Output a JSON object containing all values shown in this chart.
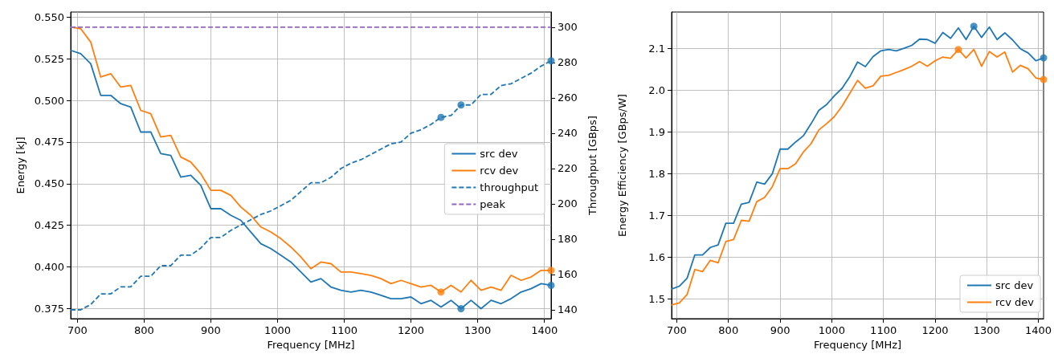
{
  "chart_data": [
    {
      "type": "line",
      "xlabel": "Frequency [MHz]",
      "ylabel": "Energy [kJ]",
      "y2label": "Throughput [GBps]",
      "x": [
        690,
        705,
        720,
        735,
        750,
        765,
        780,
        795,
        810,
        825,
        840,
        855,
        870,
        885,
        900,
        915,
        930,
        945,
        960,
        975,
        990,
        1005,
        1020,
        1035,
        1050,
        1065,
        1080,
        1095,
        1110,
        1125,
        1140,
        1155,
        1170,
        1185,
        1200,
        1215,
        1230,
        1245,
        1260,
        1275,
        1290,
        1305,
        1320,
        1335,
        1350,
        1365,
        1380,
        1395,
        1410
      ],
      "series": [
        {
          "name": "src dev",
          "color": "#1f77b4",
          "line_style": "solid",
          "values": [
            0.53,
            0.528,
            0.522,
            0.503,
            0.503,
            0.498,
            0.496,
            0.481,
            0.481,
            0.468,
            0.467,
            0.454,
            0.455,
            0.449,
            0.435,
            0.435,
            0.431,
            0.428,
            0.421,
            0.414,
            0.411,
            0.407,
            0.403,
            0.397,
            0.391,
            0.393,
            0.388,
            0.386,
            0.385,
            0.386,
            0.385,
            0.383,
            0.381,
            0.381,
            0.382,
            0.378,
            0.38,
            0.376,
            0.38,
            0.375,
            0.38,
            0.375,
            0.38,
            0.378,
            0.381,
            0.385,
            0.387,
            0.39,
            0.389
          ]
        },
        {
          "name": "rcv dev",
          "color": "#ff7f0e",
          "line_style": "solid",
          "values": [
            0.544,
            0.543,
            0.535,
            0.514,
            0.516,
            0.508,
            0.509,
            0.494,
            0.492,
            0.478,
            0.479,
            0.466,
            0.463,
            0.456,
            0.446,
            0.446,
            0.443,
            0.436,
            0.431,
            0.424,
            0.421,
            0.417,
            0.412,
            0.406,
            0.399,
            0.403,
            0.402,
            0.397,
            0.397,
            0.396,
            0.395,
            0.393,
            0.39,
            0.392,
            0.39,
            0.388,
            0.389,
            0.385,
            0.389,
            0.385,
            0.392,
            0.386,
            0.388,
            0.386,
            0.395,
            0.392,
            0.394,
            0.398,
            0.398
          ]
        },
        {
          "name": "throughput",
          "color": "#1f77b4",
          "line_style": "dashed",
          "axis": "y2",
          "values": [
            140,
            140,
            143,
            149,
            149,
            153,
            153,
            159,
            159,
            165,
            165,
            171,
            171,
            175,
            181,
            181,
            185,
            188,
            191,
            194,
            196,
            199,
            202,
            207,
            212,
            212,
            215,
            220,
            223,
            225,
            228,
            231,
            234,
            235,
            240,
            242,
            245,
            249,
            250,
            256,
            256,
            262,
            262,
            267,
            268,
            271,
            274,
            278,
            281
          ]
        },
        {
          "name": "peak",
          "color": "#9467bd",
          "line_style": "dashed",
          "axis": "y2",
          "x": [
            690,
            1410
          ],
          "values": [
            300,
            300
          ]
        },
        {
          "type": "scatter",
          "color": "#1f77b4",
          "marker": "circle",
          "x": [
            1275,
            1410
          ],
          "values": [
            0.375,
            0.389
          ]
        },
        {
          "type": "scatter",
          "color": "#ff7f0e",
          "marker": "circle",
          "x": [
            1245,
            1410
          ],
          "values": [
            0.385,
            0.398
          ]
        },
        {
          "type": "scatter",
          "color": "#1f77b4",
          "marker": "circle",
          "axis": "y2",
          "x": [
            1245,
            1275,
            1410
          ],
          "values": [
            249,
            256,
            281
          ]
        }
      ],
      "xlim": [
        690,
        1410
      ],
      "xticks": [
        700,
        800,
        900,
        1000,
        1100,
        1200,
        1300,
        1400
      ],
      "ylim": [
        0.369,
        0.553
      ],
      "yticks": [
        {
          "value": 0.375,
          "label": "0.375"
        },
        {
          "value": 0.4,
          "label": "0.400"
        },
        {
          "value": 0.425,
          "label": "0.425"
        },
        {
          "value": 0.45,
          "label": "0.450"
        },
        {
          "value": 0.475,
          "label": "0.475"
        },
        {
          "value": 0.5,
          "label": "0.500"
        },
        {
          "value": 0.525,
          "label": "0.525"
        },
        {
          "value": 0.55,
          "label": "0.550"
        }
      ],
      "y2lim": [
        135,
        308.6
      ],
      "y2ticks": [
        140,
        160,
        180,
        200,
        220,
        240,
        260,
        280,
        300
      ],
      "grid": true,
      "legend": "right",
      "marker": "none"
    },
    {
      "type": "line",
      "xlabel": "Frequency [MHz]",
      "ylabel": "Energy Efficiency [GBps/W]",
      "x": [
        690,
        705,
        720,
        735,
        750,
        765,
        780,
        795,
        810,
        825,
        840,
        855,
        870,
        885,
        900,
        915,
        930,
        945,
        960,
        975,
        990,
        1005,
        1020,
        1035,
        1050,
        1065,
        1080,
        1095,
        1110,
        1125,
        1140,
        1155,
        1170,
        1185,
        1200,
        1215,
        1230,
        1245,
        1260,
        1275,
        1290,
        1305,
        1320,
        1335,
        1350,
        1365,
        1380,
        1395,
        1410
      ],
      "series": [
        {
          "name": "src dev",
          "color": "#1f77b4",
          "values": [
            1.523,
            1.53,
            1.549,
            1.605,
            1.605,
            1.623,
            1.629,
            1.681,
            1.681,
            1.727,
            1.731,
            1.78,
            1.775,
            1.8,
            1.859,
            1.859,
            1.876,
            1.891,
            1.92,
            1.952,
            1.966,
            1.987,
            2.005,
            2.033,
            2.068,
            2.057,
            2.081,
            2.095,
            2.098,
            2.095,
            2.101,
            2.108,
            2.123,
            2.122,
            2.113,
            2.139,
            2.125,
            2.15,
            2.122,
            2.154,
            2.127,
            2.152,
            2.122,
            2.138,
            2.121,
            2.1,
            2.09,
            2.071,
            2.078
          ]
        },
        {
          "name": "rcv dev",
          "color": "#ff7f0e",
          "values": [
            1.485,
            1.49,
            1.51,
            1.57,
            1.565,
            1.592,
            1.586,
            1.637,
            1.642,
            1.688,
            1.686,
            1.733,
            1.743,
            1.769,
            1.812,
            1.812,
            1.824,
            1.852,
            1.872,
            1.905,
            1.92,
            1.937,
            1.962,
            1.993,
            2.024,
            2.005,
            2.011,
            2.034,
            2.036,
            2.043,
            2.05,
            2.058,
            2.069,
            2.058,
            2.071,
            2.08,
            2.077,
            2.098,
            2.078,
            2.098,
            2.058,
            2.093,
            2.08,
            2.092,
            2.044,
            2.06,
            2.052,
            2.03,
            2.026
          ]
        },
        {
          "type": "scatter",
          "color": "#1f77b4",
          "marker": "circle",
          "x": [
            1275,
            1410
          ],
          "values": [
            2.154,
            2.078
          ]
        },
        {
          "type": "scatter",
          "color": "#ff7f0e",
          "marker": "circle",
          "x": [
            1245,
            1410
          ],
          "values": [
            2.098,
            2.026
          ]
        }
      ],
      "xlim": [
        690,
        1410
      ],
      "xticks": [
        700,
        800,
        900,
        1000,
        1100,
        1200,
        1300,
        1400
      ],
      "ylim": [
        1.452,
        2.188
      ],
      "yticks": [
        1.5,
        1.6,
        1.7,
        1.8,
        1.9,
        {
          "value": 2,
          "label": "2.0"
        },
        2.1
      ],
      "grid": true,
      "legend": "bottom right",
      "marker": "none"
    }
  ]
}
